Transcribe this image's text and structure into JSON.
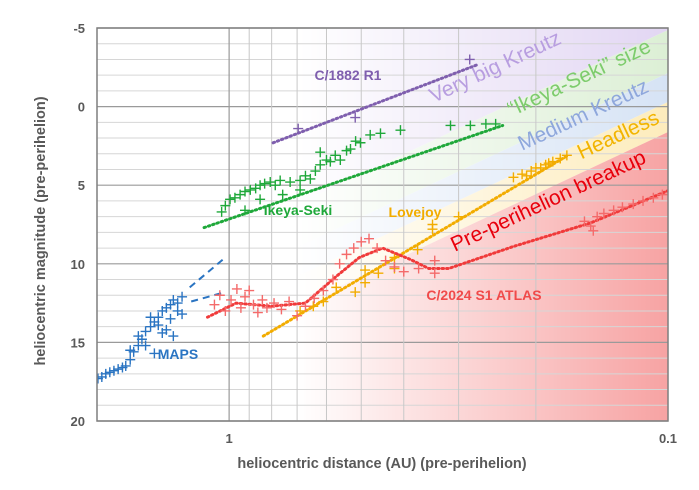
{
  "chart_data": {
    "type": "scatter",
    "xscale": "log",
    "xlabel": "heliocentric distance (AU) (pre-perihelion)",
    "ylabel": "heliocentric magnitude (pre-perihelion)",
    "xlim": [
      2,
      0.1
    ],
    "ylim": [
      -5,
      20
    ],
    "x_ticks": [
      {
        "v": 1,
        "label": "1"
      },
      {
        "v": 0.1,
        "label": "0.1"
      }
    ],
    "y_ticks": [
      {
        "v": -5,
        "label": "-5"
      },
      {
        "v": 0,
        "label": "0"
      },
      {
        "v": 5,
        "label": "5"
      },
      {
        "v": 10,
        "label": "10"
      },
      {
        "v": 15,
        "label": "15"
      },
      {
        "v": 20,
        "label": "20"
      }
    ],
    "grid": true,
    "bands": [
      {
        "label": "Very big Kreutz",
        "color": "#b89ee0",
        "fill": "#e2d6f3"
      },
      {
        "label": "“Ikeya-Seki” size",
        "color": "#7dcc6c",
        "fill": "#dcefd5"
      },
      {
        "label": "Medium Kreutz",
        "color": "#8ea7dc",
        "fill": "#d6e3f5"
      },
      {
        "label": "Headless",
        "color": "#f2b400",
        "fill": "#fdecbc"
      },
      {
        "label": "Pre-perihelion breakup",
        "color": "#e8000c",
        "fill": "#f7a3a3"
      }
    ],
    "series": [
      {
        "name": "MAPS",
        "color": "#2a74c2",
        "points": [
          [
            1.99,
            17.3
          ],
          [
            1.95,
            17.2
          ],
          [
            1.91,
            17.0
          ],
          [
            1.87,
            16.9
          ],
          [
            1.83,
            16.8
          ],
          [
            1.79,
            16.7
          ],
          [
            1.75,
            16.6
          ],
          [
            1.72,
            16.5
          ],
          [
            1.68,
            16.1
          ],
          [
            1.65,
            15.6
          ],
          [
            1.61,
            15.2
          ],
          [
            1.58,
            14.8
          ],
          [
            1.55,
            14.3
          ],
          [
            1.51,
            14.0
          ],
          [
            1.48,
            13.7
          ],
          [
            1.45,
            13.4
          ],
          [
            1.42,
            13.0
          ],
          [
            1.39,
            12.8
          ],
          [
            1.36,
            12.6
          ],
          [
            1.34,
            12.3
          ],
          [
            1.31,
            12.5
          ],
          [
            1.28,
            12.1
          ],
          [
            1.51,
            13.4
          ],
          [
            1.45,
            13.9
          ],
          [
            1.42,
            14.4
          ],
          [
            1.36,
            13.5
          ],
          [
            1.31,
            13.0
          ],
          [
            1.28,
            13.2
          ],
          [
            1.55,
            15.2
          ],
          [
            1.48,
            15.7
          ],
          [
            1.39,
            14.2
          ],
          [
            1.34,
            14.6
          ],
          [
            1.61,
            14.6
          ],
          [
            1.68,
            15.5
          ]
        ],
        "dashed_lines": [
          [
            [
              1.23,
              11.5
            ],
            [
              1.02,
              9.6
            ]
          ],
          [
            [
              1.22,
              12.4
            ],
            [
              1.02,
              11.8
            ]
          ]
        ]
      },
      {
        "name": "Ikeya-Seki",
        "color": "#1fa83a",
        "points": [
          [
            1.04,
            6.7
          ],
          [
            1.02,
            6.3
          ],
          [
            0.995,
            5.9
          ],
          [
            0.97,
            5.8
          ],
          [
            0.944,
            5.6
          ],
          [
            0.92,
            5.4
          ],
          [
            0.895,
            5.3
          ],
          [
            0.87,
            5.2
          ],
          [
            0.85,
            5.0
          ],
          [
            0.83,
            4.9
          ],
          [
            0.806,
            4.8
          ],
          [
            0.785,
            5.0
          ],
          [
            0.765,
            4.7
          ],
          [
            0.726,
            4.8
          ],
          [
            0.689,
            4.7
          ],
          [
            0.67,
            4.4
          ],
          [
            0.653,
            4.6
          ],
          [
            0.636,
            4.1
          ],
          [
            0.62,
            3.7
          ],
          [
            0.6,
            3.4
          ],
          [
            0.588,
            3.5
          ],
          [
            0.573,
            3.1
          ],
          [
            0.558,
            3.4
          ],
          [
            0.54,
            2.8
          ],
          [
            0.529,
            2.7
          ],
          [
            0.515,
            2.2
          ],
          [
            0.502,
            2.3
          ],
          [
            0.477,
            1.8
          ],
          [
            0.452,
            1.7
          ],
          [
            0.407,
            1.5
          ],
          [
            0.313,
            1.2
          ],
          [
            0.282,
            1.2
          ],
          [
            0.26,
            1.1
          ],
          [
            0.247,
            1.1
          ],
          [
            0.62,
            2.9
          ],
          [
            0.85,
            5.9
          ],
          [
            0.92,
            6.6
          ],
          [
            0.755,
            5.6
          ],
          [
            0.689,
            5.3
          ]
        ],
        "trend": [
          [
            1.14,
            7.7
          ],
          [
            0.238,
            1.2
          ]
        ]
      },
      {
        "name": "C/1882 R1",
        "color": "#7f5fae",
        "points": [
          [
            0.696,
            1.4
          ],
          [
            0.516,
            0.7
          ],
          [
            0.283,
            -3.0
          ]
        ],
        "trend": [
          [
            0.794,
            2.3
          ],
          [
            0.27,
            -2.7
          ]
        ]
      },
      {
        "name": "Lovejoy",
        "color": "#f2ac00",
        "points": [
          [
            0.689,
            13.0
          ],
          [
            0.643,
            12.7
          ],
          [
            0.61,
            12.4
          ],
          [
            0.57,
            11.5
          ],
          [
            0.516,
            11.8
          ],
          [
            0.49,
            11.2
          ],
          [
            0.49,
            10.4
          ],
          [
            0.457,
            10.6
          ],
          [
            0.42,
            10.3
          ],
          [
            0.42,
            9.6
          ],
          [
            0.372,
            9.1
          ],
          [
            0.344,
            7.8
          ],
          [
            0.344,
            7.5
          ],
          [
            0.3,
            7.0
          ],
          [
            0.225,
            4.5
          ],
          [
            0.215,
            4.3
          ],
          [
            0.205,
            4.1
          ],
          [
            0.195,
            3.9
          ],
          [
            0.19,
            3.7
          ],
          [
            0.183,
            3.5
          ],
          [
            0.176,
            3.3
          ],
          [
            0.17,
            3.1
          ],
          [
            0.21,
            4.4
          ],
          [
            0.2,
            3.9
          ],
          [
            0.187,
            3.6
          ]
        ],
        "trend": [
          [
            0.836,
            14.6
          ],
          [
            0.169,
            3.1
          ]
        ]
      },
      {
        "name": "C/2024 S1 ATLAS",
        "color": "#f46a6a",
        "points": [
          [
            1.08,
            12.6
          ],
          [
            1.05,
            12.0
          ],
          [
            1.02,
            13.0
          ],
          [
            0.99,
            12.3
          ],
          [
            0.96,
            11.6
          ],
          [
            0.94,
            12.8
          ],
          [
            0.92,
            12.1
          ],
          [
            0.9,
            11.7
          ],
          [
            0.88,
            12.6
          ],
          [
            0.86,
            13.1
          ],
          [
            0.84,
            12.3
          ],
          [
            0.82,
            12.8
          ],
          [
            0.79,
            12.5
          ],
          [
            0.76,
            12.9
          ],
          [
            0.73,
            12.4
          ],
          [
            0.7,
            13.3
          ],
          [
            0.67,
            12.7
          ],
          [
            0.64,
            12.2
          ],
          [
            0.61,
            11.7
          ],
          [
            0.58,
            11.0
          ],
          [
            0.56,
            10.0
          ],
          [
            0.54,
            9.4
          ],
          [
            0.52,
            9.0
          ],
          [
            0.5,
            8.6
          ],
          [
            0.48,
            8.4
          ],
          [
            0.46,
            9.0
          ],
          [
            0.44,
            9.8
          ],
          [
            0.42,
            10.2
          ],
          [
            0.4,
            10.5
          ],
          [
            0.37,
            10.3
          ],
          [
            0.34,
            10.6
          ],
          [
            0.34,
            9.8
          ],
          [
            0.155,
            7.3
          ],
          [
            0.15,
            7.6
          ],
          [
            0.145,
            7.0
          ],
          [
            0.14,
            6.8
          ],
          [
            0.133,
            6.6
          ],
          [
            0.127,
            6.4
          ],
          [
            0.12,
            6.2
          ],
          [
            0.114,
            6.0
          ],
          [
            0.108,
            5.8
          ],
          [
            0.103,
            5.6
          ],
          [
            0.148,
            7.9
          ]
        ],
        "trend": [
          [
            1.12,
            13.4
          ],
          [
            0.964,
            12.5
          ],
          [
            0.8,
            12.7
          ],
          [
            0.67,
            12.5
          ],
          [
            0.57,
            10.8
          ],
          [
            0.505,
            9.6
          ],
          [
            0.447,
            9.0
          ],
          [
            0.388,
            9.7
          ],
          [
            0.351,
            10.3
          ],
          [
            0.316,
            10.3
          ],
          [
            0.225,
            8.9
          ],
          [
            0.15,
            7.4
          ],
          [
            0.099,
            5.3
          ]
        ],
        "trend_color": "#f03a3a"
      }
    ]
  }
}
